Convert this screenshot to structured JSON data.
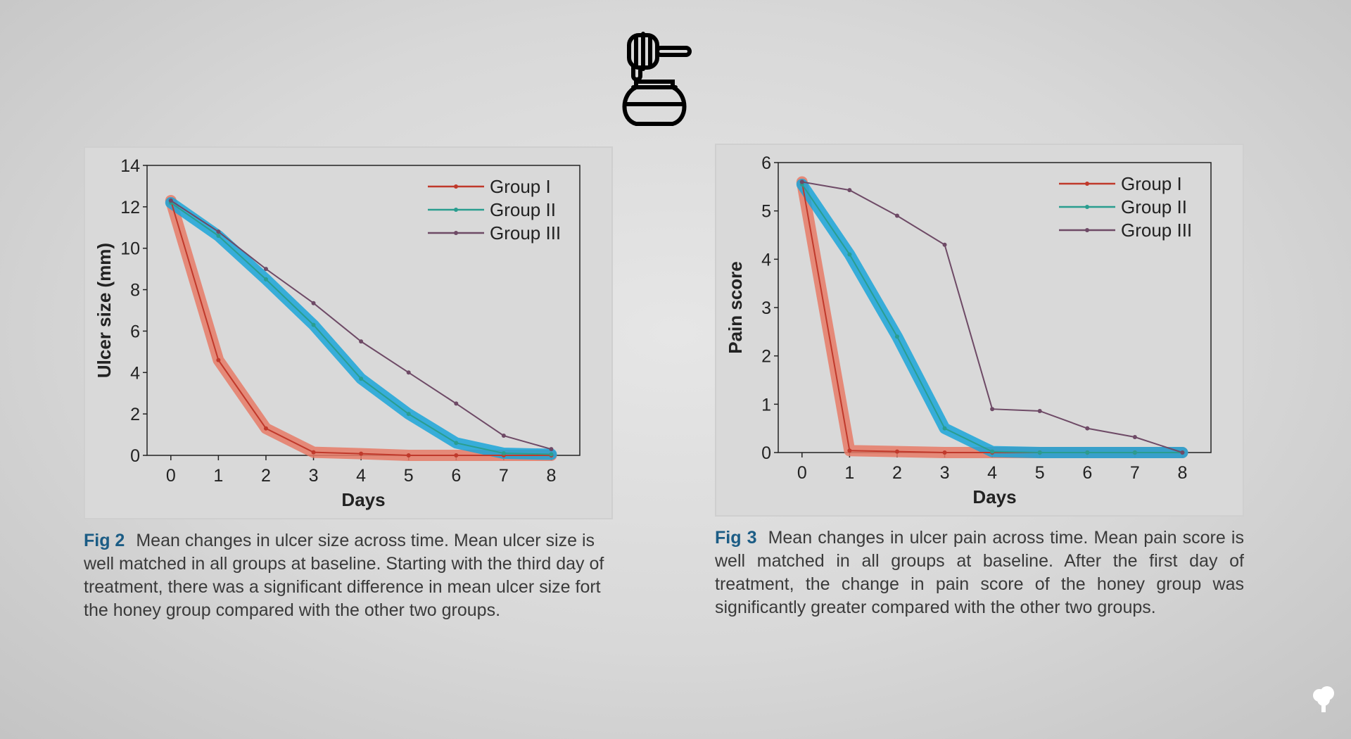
{
  "colors": {
    "group1": "#c0392b",
    "group2": "#2a9d8f",
    "group3": "#6e4a66",
    "highlight_red": "#e67a66",
    "highlight_blue": "#1aa5d8",
    "fig_label": "#1b5c85"
  },
  "icons": {
    "logo": "honey-dipper-jar-icon",
    "corner": "tree-icon"
  },
  "figures": [
    {
      "label": "Fig 2",
      "caption": "Mean changes in ulcer size across time. Mean ulcer size is well matched in all groups at baseline. Starting with the third day of treatment, there was a significant difference in mean ulcer size fort the honey group compared with the other two groups."
    },
    {
      "label": "Fig 3",
      "caption": "Mean changes in ulcer pain across time. Mean pain score is well matched in all groups at baseline. After the first day of treatment, the change in pain score of the honey group was significantly greater compared with the other two groups."
    }
  ],
  "chart_data": [
    {
      "type": "line",
      "title": "",
      "xlabel": "Days",
      "ylabel": "Ulcer size (mm)",
      "x": [
        0,
        1,
        2,
        3,
        4,
        5,
        6,
        7,
        8
      ],
      "xticks": [
        "0",
        "1",
        "2",
        "3",
        "4",
        "5",
        "6",
        "7",
        "8"
      ],
      "yticks": [
        "0",
        "2",
        "4",
        "6",
        "8",
        "10",
        "12",
        "14"
      ],
      "ylim": [
        0,
        14
      ],
      "xlim": [
        -0.5,
        8.6
      ],
      "legend": "top-right",
      "series": [
        {
          "name": "Group I",
          "values": [
            12.3,
            4.6,
            1.3,
            0.15,
            0.08,
            0,
            0,
            0,
            0
          ],
          "highlight": "red"
        },
        {
          "name": "Group II",
          "values": [
            12.2,
            10.6,
            8.5,
            6.3,
            3.7,
            2.0,
            0.6,
            0.1,
            0.05
          ],
          "highlight": "blue"
        },
        {
          "name": "Group III",
          "values": [
            12.3,
            10.8,
            9.0,
            7.35,
            5.5,
            4.0,
            2.5,
            0.95,
            0.3
          ]
        }
      ]
    },
    {
      "type": "line",
      "title": "",
      "xlabel": "Days",
      "ylabel": "Pain score",
      "x": [
        0,
        1,
        2,
        3,
        4,
        5,
        6,
        7,
        8
      ],
      "xticks": [
        "0",
        "1",
        "2",
        "3",
        "4",
        "5",
        "6",
        "7",
        "8"
      ],
      "yticks": [
        "0",
        "1",
        "2",
        "3",
        "4",
        "5",
        "6"
      ],
      "ylim": [
        0,
        6
      ],
      "xlim": [
        -0.5,
        8.6
      ],
      "legend": "top-right",
      "series": [
        {
          "name": "Group I",
          "values": [
            5.6,
            0.04,
            0.02,
            0,
            0,
            0,
            0,
            0,
            0
          ],
          "highlight": "red"
        },
        {
          "name": "Group II",
          "values": [
            5.55,
            4.1,
            2.4,
            0.5,
            0.02,
            0,
            0,
            0,
            0
          ],
          "highlight": "blue"
        },
        {
          "name": "Group III",
          "values": [
            5.6,
            5.43,
            4.9,
            4.3,
            0.9,
            0.86,
            0.5,
            0.32,
            0
          ]
        }
      ]
    }
  ]
}
